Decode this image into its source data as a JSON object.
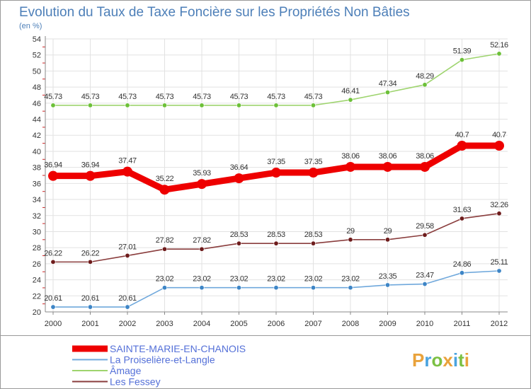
{
  "chart_data": {
    "type": "line",
    "title": "Evolution du Taux de Taxe Foncière sur les Propriétés Non Bâties",
    "subtitle": "(en %)",
    "xlabel": "",
    "ylabel": "",
    "ylim": [
      20,
      54
    ],
    "yticks": [
      20,
      22,
      24,
      26,
      28,
      30,
      32,
      34,
      36,
      38,
      40,
      42,
      44,
      46,
      48,
      50,
      52,
      54
    ],
    "categories": [
      "2000",
      "2001",
      "2002",
      "2003",
      "2004",
      "2005",
      "2006",
      "2007",
      "2008",
      "2009",
      "2010",
      "2011",
      "2012"
    ],
    "grid": true,
    "legend_position": "bottom-left",
    "series": [
      {
        "name": "Âmage",
        "color": "#9ed46e",
        "marker_color": "#6cc038",
        "values": [
          45.73,
          45.73,
          45.73,
          45.73,
          45.73,
          45.73,
          45.73,
          45.73,
          46.41,
          47.34,
          48.29,
          51.39,
          52.16
        ],
        "labels": [
          "45.73",
          "45.73",
          "45.73",
          "45.73",
          "45.73",
          "45.73",
          "45.73",
          "45.73",
          "46.41",
          "47.34",
          "48.29",
          "51.39",
          "52.16"
        ]
      },
      {
        "name": "SAINTE-MARIE-EN-CHANOIS",
        "color": "#ee0000",
        "marker_color": "#ee0000",
        "values": [
          36.94,
          36.94,
          37.47,
          35.22,
          35.93,
          36.64,
          37.35,
          37.35,
          38.06,
          38.06,
          38.06,
          40.7,
          40.7
        ],
        "labels": [
          "36.94",
          "36.94",
          "37.47",
          "35.22",
          "35.93",
          "36.64",
          "37.35",
          "37.35",
          "38.06",
          "38.06",
          "38.06",
          "40.7",
          "40.7"
        ]
      },
      {
        "name": "Les Fessey",
        "color": "#8a3d3d",
        "marker_color": "#6e1c1c",
        "values": [
          26.22,
          26.22,
          27.01,
          27.82,
          27.82,
          28.53,
          28.53,
          28.53,
          29,
          29,
          29.58,
          31.63,
          32.26
        ],
        "labels": [
          "26.22",
          "26.22",
          "27.01",
          "27.82",
          "27.82",
          "28.53",
          "28.53",
          "28.53",
          "29",
          "29",
          "29.58",
          "31.63",
          "32.26"
        ]
      },
      {
        "name": "La Proiselière-et-Langle",
        "color": "#6fa8dc",
        "marker_color": "#3d85c6",
        "values": [
          20.61,
          20.61,
          20.61,
          23.02,
          23.02,
          23.02,
          23.02,
          23.02,
          23.02,
          23.35,
          23.47,
          24.86,
          25.11
        ],
        "labels": [
          "20.61",
          "20.61",
          "20.61",
          "23.02",
          "23.02",
          "23.02",
          "23.02",
          "23.02",
          "23.02",
          "23.35",
          "23.47",
          "24.86",
          "25.11"
        ]
      }
    ],
    "legend": [
      {
        "name": "SAINTE-MARIE-EN-CHANOIS",
        "color": "#ee0000",
        "thick": true
      },
      {
        "name": "La Proiselière-et-Langle",
        "color": "#6fa8dc",
        "thick": false
      },
      {
        "name": "Âmage",
        "color": "#9ed46e",
        "thick": false
      },
      {
        "name": "Les Fessey",
        "color": "#8a3d3d",
        "thick": false
      }
    ]
  },
  "logo": {
    "text": "Proxiti",
    "letters": [
      {
        "ch": "P",
        "color": "#e9a23b"
      },
      {
        "ch": "r",
        "color": "#4aa3df"
      },
      {
        "ch": "o",
        "color": "#7bc043"
      },
      {
        "ch": "x",
        "color": "#e9a23b"
      },
      {
        "ch": "i",
        "color": "#4aa3df"
      },
      {
        "ch": "t",
        "color": "#7bc043"
      },
      {
        "ch": "i",
        "color": "#e9a23b"
      }
    ]
  }
}
